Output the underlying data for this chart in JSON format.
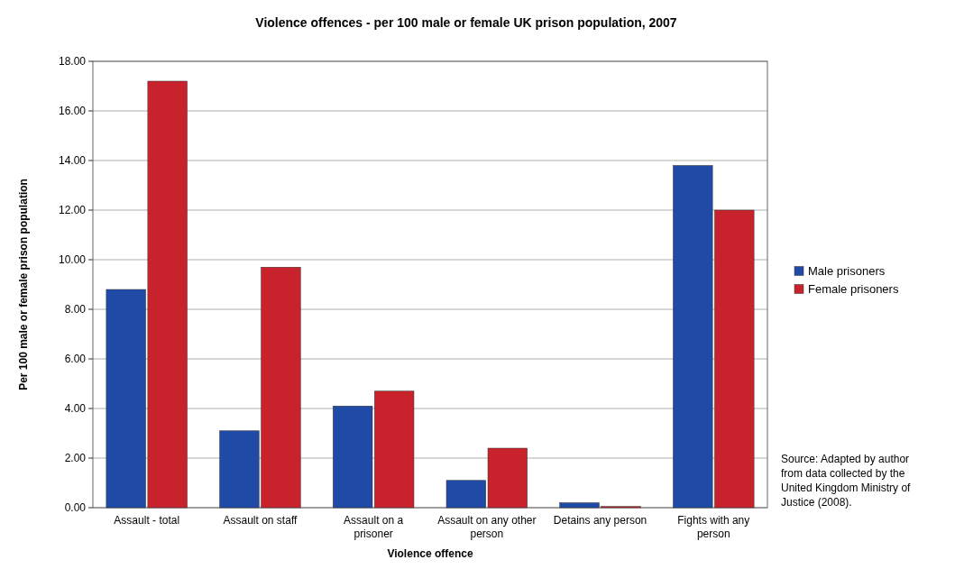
{
  "chart_data": {
    "type": "bar",
    "title": "Violence offences - per 100 male or female UK prison population, 2007",
    "xlabel": "Violence offence",
    "ylabel": "Per 100 male or female prison population",
    "categories": [
      "Assault - total",
      "Assault on staff",
      "Assault on a prisoner",
      "Assault on any other person",
      "Detains any person",
      "Fights with any person"
    ],
    "series": [
      {
        "name": "Male prisoners",
        "color": "#1f4aa6",
        "values": [
          8.8,
          3.1,
          4.1,
          1.1,
          0.2,
          13.8
        ]
      },
      {
        "name": "Female prisoners",
        "color": "#c8232c",
        "values": [
          17.2,
          9.7,
          4.7,
          2.4,
          0.05,
          12.0
        ]
      }
    ],
    "ylim": [
      0,
      18
    ],
    "yticks": [
      {
        "value": 0,
        "label": "0.00"
      },
      {
        "value": 2,
        "label": "2.00"
      },
      {
        "value": 4,
        "label": "4.00"
      },
      {
        "value": 6,
        "label": "6.00"
      },
      {
        "value": 8,
        "label": "8.00"
      },
      {
        "value": 10,
        "label": "10.00"
      },
      {
        "value": 12,
        "label": "12.00"
      },
      {
        "value": 14,
        "label": "14.00"
      },
      {
        "value": 16,
        "label": "16.00"
      },
      {
        "value": 18,
        "label": "18.00"
      }
    ],
    "grid": "y",
    "legend": "right",
    "annotations": [
      "Source: Adapted by author from data collected by the United Kingdom Ministry of Justice (2008)."
    ]
  }
}
